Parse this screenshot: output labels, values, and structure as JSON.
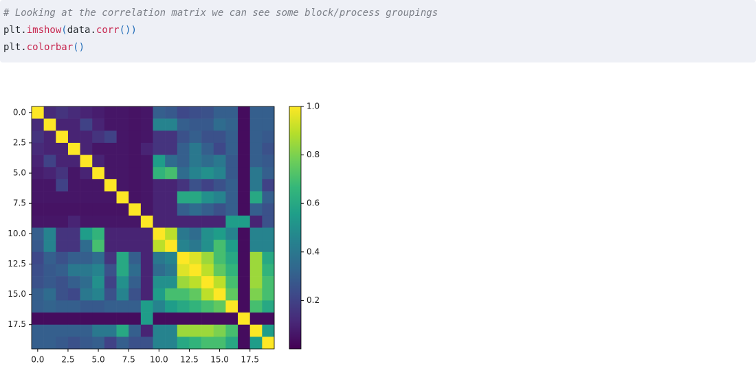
{
  "code": {
    "lines": [
      [
        "# Looking at the correlation matrix we can see some block/process groupings"
      ],
      [
        "plt.",
        "imshow",
        "(",
        "data.",
        "corr",
        "())"
      ],
      [
        "plt.",
        "colorbar",
        "()"
      ]
    ]
  },
  "chart_data": {
    "type": "heatmap",
    "cmap": "viridis",
    "xlim": [
      -0.5,
      19.5
    ],
    "ylim": [
      19.5,
      -0.5
    ],
    "xticks": [
      {
        "value": 0,
        "label": "0.0"
      },
      2.5,
      {
        "value": 5,
        "label": "5.0"
      },
      7.5,
      {
        "value": 10,
        "label": "10.0"
      },
      12.5,
      {
        "value": 15,
        "label": "15.0"
      },
      17.5
    ],
    "yticks": [
      {
        "value": 0,
        "label": "0.0"
      },
      2.5,
      {
        "value": 5,
        "label": "5.0"
      },
      7.5,
      {
        "value": 10,
        "label": "10.0"
      },
      12.5,
      {
        "value": 15,
        "label": "15.0"
      },
      17.5
    ],
    "colorbar": {
      "lim": [
        0,
        1
      ],
      "ticks": [
        0.2,
        0.4,
        0.6,
        0.8,
        {
          "value": 1,
          "label": "1.0"
        }
      ]
    },
    "matrix": [
      [
        1,
        0.12,
        0.15,
        0.12,
        0.1,
        0.08,
        0.06,
        0.06,
        0.05,
        0.06,
        0.3,
        0.28,
        0.22,
        0.24,
        0.25,
        0.3,
        0.3,
        0.03,
        0.3,
        0.3
      ],
      [
        0.12,
        1,
        0.1,
        0.1,
        0.2,
        0.1,
        0.06,
        0.06,
        0.05,
        0.06,
        0.45,
        0.45,
        0.3,
        0.28,
        0.28,
        0.35,
        0.32,
        0.03,
        0.3,
        0.3
      ],
      [
        0.15,
        0.1,
        1,
        0.1,
        0.1,
        0.15,
        0.2,
        0.06,
        0.05,
        0.06,
        0.15,
        0.15,
        0.25,
        0.3,
        0.25,
        0.25,
        0.3,
        0.03,
        0.3,
        0.28
      ],
      [
        0.12,
        0.1,
        0.1,
        1,
        0.1,
        0.06,
        0.06,
        0.06,
        0.05,
        0.1,
        0.15,
        0.15,
        0.3,
        0.4,
        0.3,
        0.22,
        0.3,
        0.03,
        0.3,
        0.25
      ],
      [
        0.1,
        0.2,
        0.1,
        0.1,
        1,
        0.1,
        0.06,
        0.06,
        0.05,
        0.06,
        0.55,
        0.35,
        0.3,
        0.4,
        0.35,
        0.4,
        0.28,
        0.03,
        0.3,
        0.28
      ],
      [
        0.08,
        0.1,
        0.15,
        0.06,
        0.1,
        1,
        0.06,
        0.06,
        0.05,
        0.06,
        0.65,
        0.7,
        0.35,
        0.45,
        0.5,
        0.45,
        0.28,
        0.03,
        0.4,
        0.3
      ],
      [
        0.06,
        0.06,
        0.2,
        0.06,
        0.06,
        0.06,
        1,
        0.06,
        0.05,
        0.06,
        0.1,
        0.1,
        0.15,
        0.25,
        0.2,
        0.25,
        0.3,
        0.03,
        0.4,
        0.2
      ],
      [
        0.06,
        0.06,
        0.06,
        0.06,
        0.06,
        0.06,
        0.06,
        1,
        0.05,
        0.06,
        0.1,
        0.1,
        0.6,
        0.6,
        0.5,
        0.45,
        0.3,
        0.03,
        0.6,
        0.3
      ],
      [
        0.05,
        0.05,
        0.05,
        0.05,
        0.05,
        0.05,
        0.05,
        0.05,
        1,
        0.06,
        0.1,
        0.1,
        0.3,
        0.35,
        0.3,
        0.25,
        0.3,
        0.03,
        0.3,
        0.25
      ],
      [
        0.06,
        0.06,
        0.06,
        0.1,
        0.06,
        0.06,
        0.06,
        0.06,
        0.06,
        1,
        0.1,
        0.1,
        0.1,
        0.1,
        0.1,
        0.1,
        0.55,
        0.55,
        0.1,
        0.25
      ],
      [
        0.3,
        0.45,
        0.15,
        0.15,
        0.55,
        0.65,
        0.1,
        0.1,
        0.1,
        0.1,
        1,
        0.9,
        0.4,
        0.35,
        0.5,
        0.55,
        0.45,
        0.03,
        0.45,
        0.45
      ],
      [
        0.28,
        0.45,
        0.15,
        0.15,
        0.35,
        0.7,
        0.1,
        0.1,
        0.1,
        0.1,
        0.9,
        1,
        0.45,
        0.4,
        0.5,
        0.7,
        0.55,
        0.03,
        0.45,
        0.45
      ],
      [
        0.22,
        0.3,
        0.25,
        0.3,
        0.3,
        0.35,
        0.15,
        0.6,
        0.3,
        0.1,
        0.4,
        0.45,
        1,
        0.95,
        0.85,
        0.7,
        0.6,
        0.03,
        0.85,
        0.6
      ],
      [
        0.24,
        0.28,
        0.3,
        0.4,
        0.4,
        0.45,
        0.25,
        0.6,
        0.35,
        0.1,
        0.35,
        0.4,
        0.95,
        1,
        0.9,
        0.75,
        0.65,
        0.03,
        0.85,
        0.65
      ],
      [
        0.25,
        0.28,
        0.25,
        0.3,
        0.35,
        0.5,
        0.2,
        0.5,
        0.3,
        0.1,
        0.5,
        0.5,
        0.85,
        0.9,
        1,
        0.9,
        0.7,
        0.03,
        0.85,
        0.7
      ],
      [
        0.3,
        0.35,
        0.25,
        0.22,
        0.4,
        0.45,
        0.25,
        0.45,
        0.25,
        0.1,
        0.55,
        0.7,
        0.7,
        0.75,
        0.9,
        1,
        0.75,
        0.03,
        0.8,
        0.7
      ],
      [
        0.3,
        0.32,
        0.3,
        0.3,
        0.28,
        0.28,
        0.3,
        0.3,
        0.3,
        0.55,
        0.45,
        0.55,
        0.6,
        0.65,
        0.7,
        0.75,
        1,
        0.03,
        0.7,
        0.6
      ],
      [
        0.03,
        0.03,
        0.03,
        0.03,
        0.03,
        0.03,
        0.03,
        0.03,
        0.03,
        0.55,
        0.03,
        0.03,
        0.03,
        0.03,
        0.03,
        0.03,
        0.03,
        1,
        0.03,
        0.03
      ],
      [
        0.3,
        0.3,
        0.3,
        0.3,
        0.3,
        0.4,
        0.4,
        0.6,
        0.3,
        0.1,
        0.45,
        0.45,
        0.85,
        0.85,
        0.85,
        0.8,
        0.7,
        0.03,
        1,
        0.55
      ],
      [
        0.3,
        0.3,
        0.28,
        0.25,
        0.28,
        0.3,
        0.2,
        0.3,
        0.25,
        0.25,
        0.45,
        0.45,
        0.6,
        0.65,
        0.7,
        0.7,
        0.6,
        0.03,
        0.55,
        1
      ]
    ]
  }
}
